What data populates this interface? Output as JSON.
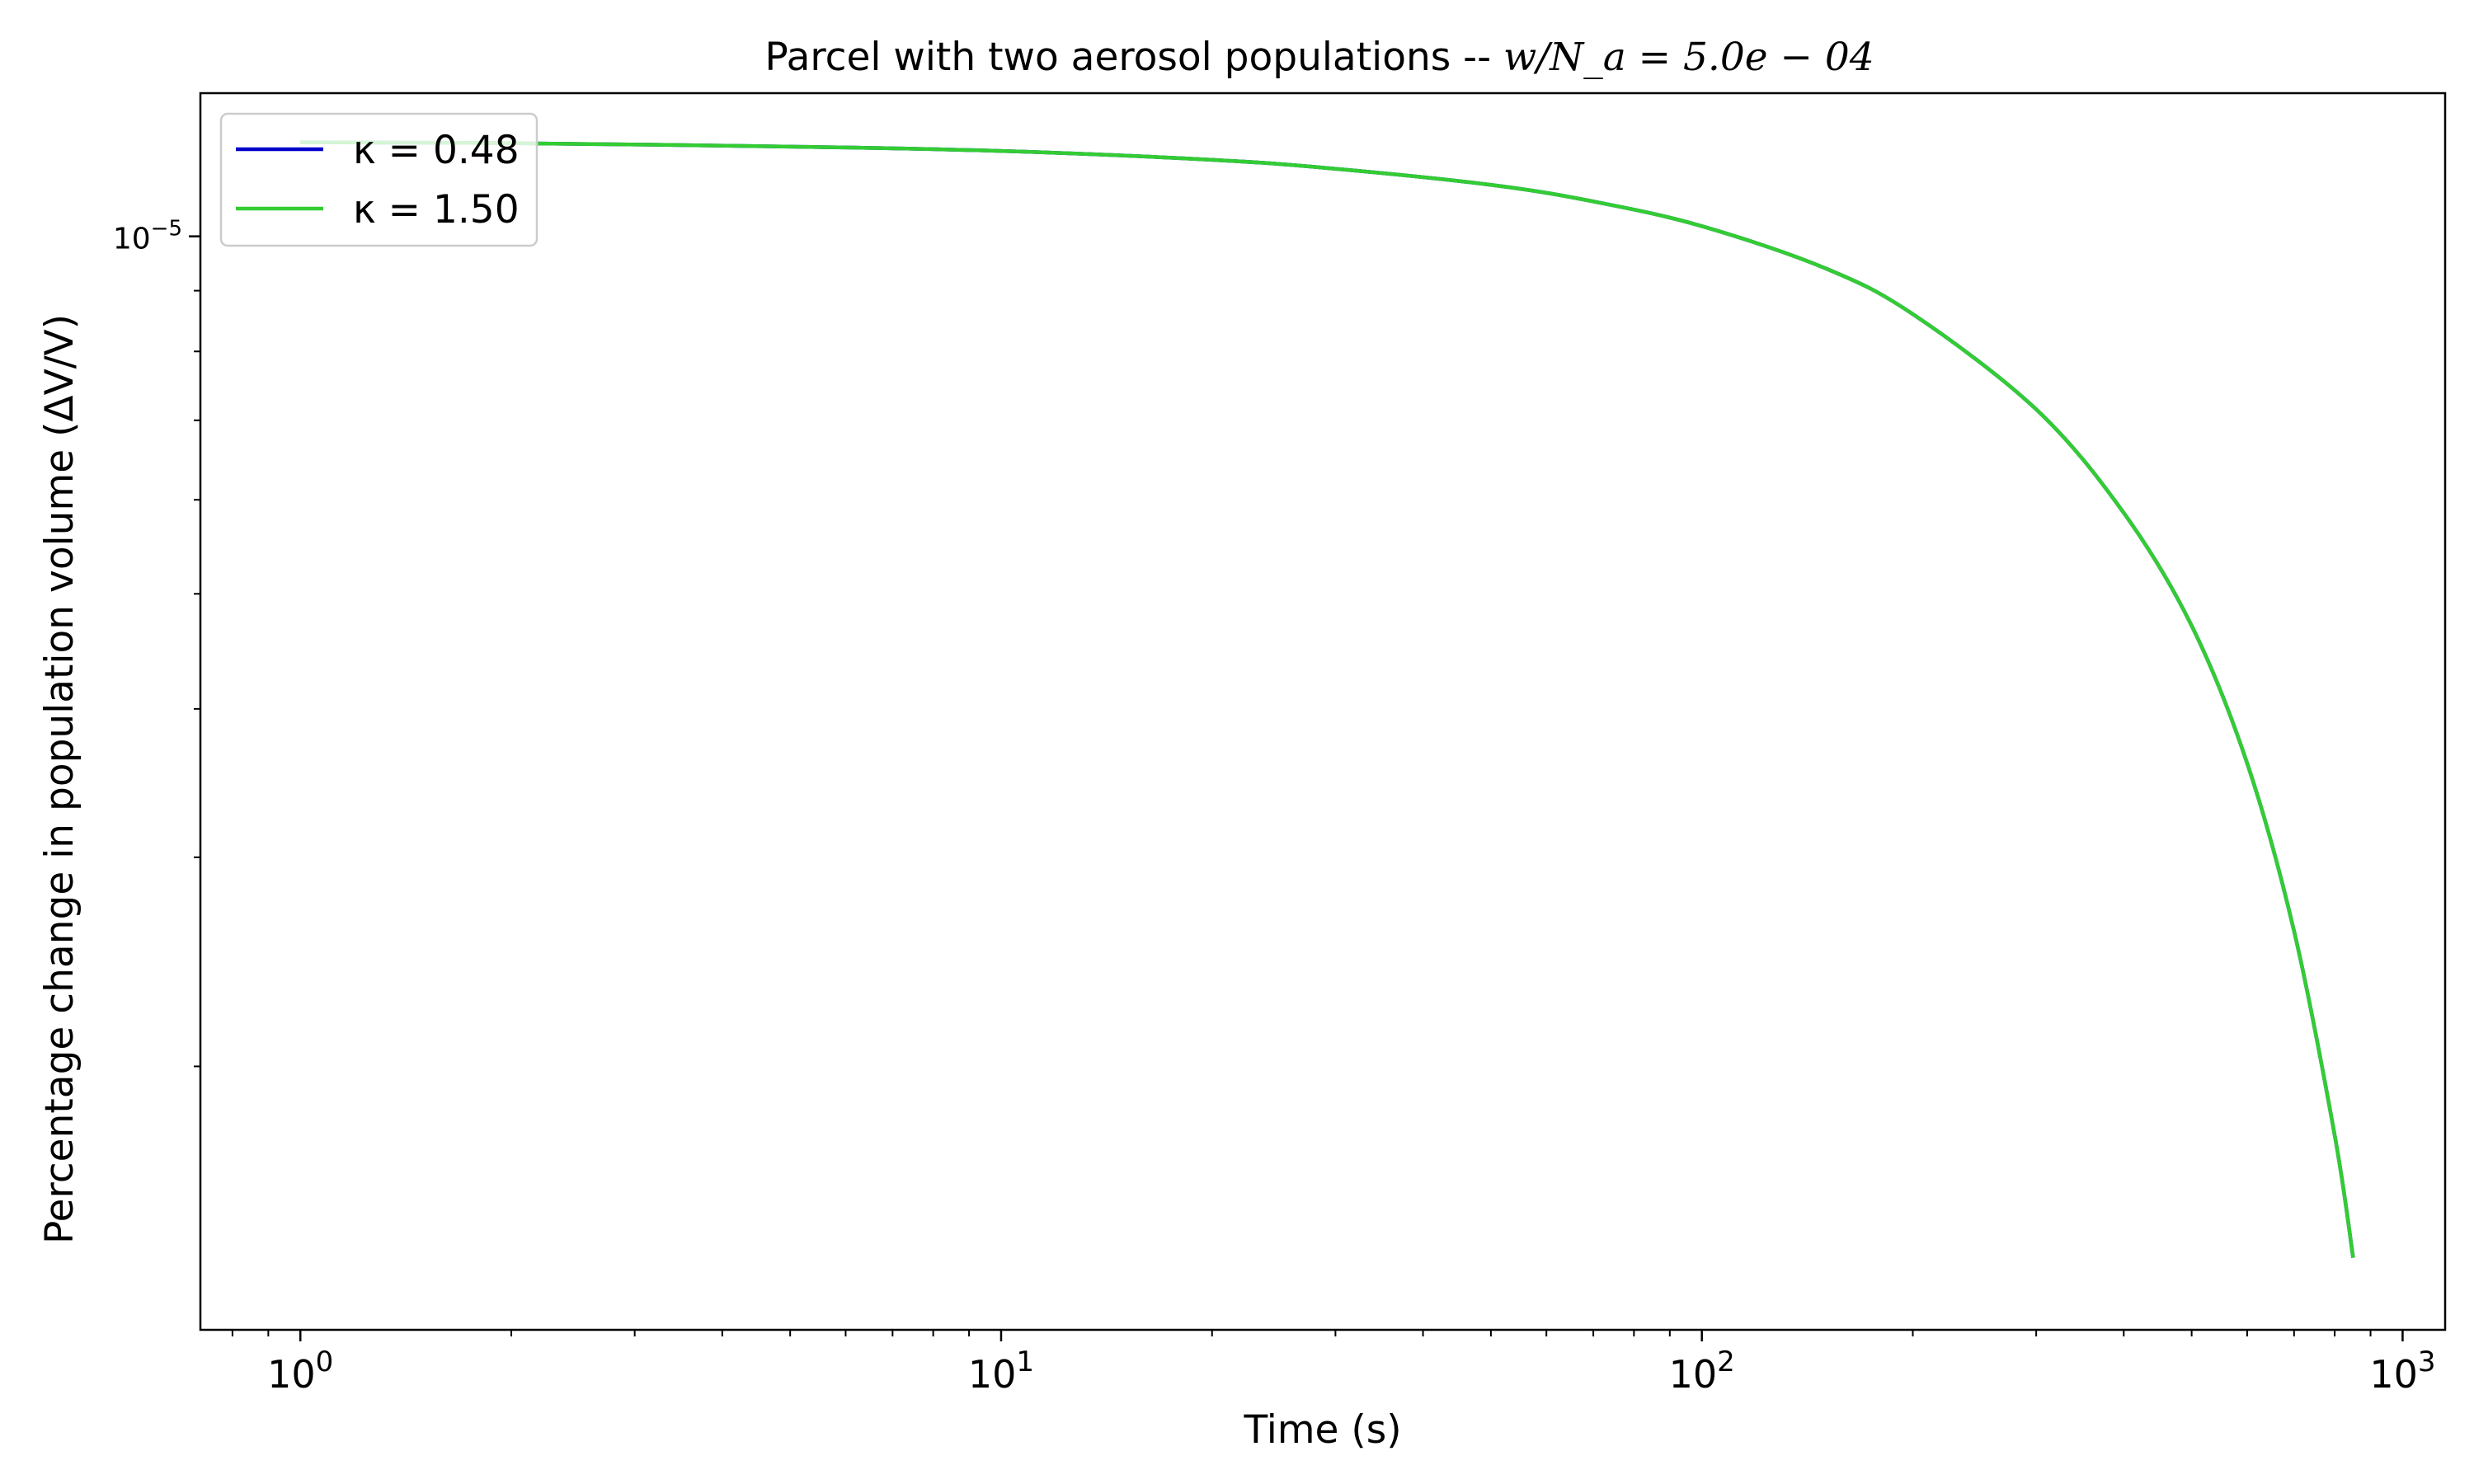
{
  "chart_data": {
    "type": "line",
    "title_text": "Parcel with two aerosol populations -- ",
    "title_math": "w/N_a = 5.0e − 04",
    "xlabel": "Time (s)",
    "ylabel": "Percentage change in population volume (ΔV/V)",
    "x_scale": "log",
    "y_scale": "log",
    "xlim": [
      0.72,
      1150
    ],
    "ylim": [
      1.2e-06,
      1.32e-05
    ],
    "x_ticks": [
      {
        "value": 1,
        "base": "10",
        "exp": "0"
      },
      {
        "value": 10,
        "base": "10",
        "exp": "1"
      },
      {
        "value": 100,
        "base": "10",
        "exp": "2"
      },
      {
        "value": 1000,
        "base": "10",
        "exp": "3"
      }
    ],
    "y_ticks": [
      {
        "value": 1e-05,
        "base": "10",
        "exp": "−5"
      }
    ],
    "grid": false,
    "legend_position": "upper left",
    "series": [
      {
        "name": "κ = 0.48",
        "color": "#0000cc",
        "x": [
          1,
          2,
          5,
          10,
          20,
          30,
          50,
          70,
          100,
          150,
          200,
          300,
          400,
          500,
          600,
          700,
          800,
          850
        ],
        "y": [
          1.2e-05,
          1.198e-05,
          1.19e-05,
          1.18e-05,
          1.16e-05,
          1.14e-05,
          1.105e-05,
          1.07e-05,
          1.02e-05,
          9.4e-06,
          8.6e-06,
          7.15e-06,
          5.85e-06,
          4.7e-06,
          3.6e-06,
          2.6e-06,
          1.75e-06,
          1.38e-06
        ]
      },
      {
        "name": "κ = 1.50",
        "color": "#33cc33",
        "x": [
          1,
          2,
          5,
          10,
          20,
          30,
          50,
          70,
          100,
          150,
          200,
          300,
          400,
          500,
          600,
          700,
          800,
          850
        ],
        "y": [
          1.2e-05,
          1.198e-05,
          1.19e-05,
          1.18e-05,
          1.16e-05,
          1.14e-05,
          1.105e-05,
          1.07e-05,
          1.02e-05,
          9.4e-06,
          8.6e-06,
          7.15e-06,
          5.85e-06,
          4.7e-06,
          3.6e-06,
          2.6e-06,
          1.75e-06,
          1.38e-06
        ]
      }
    ]
  }
}
